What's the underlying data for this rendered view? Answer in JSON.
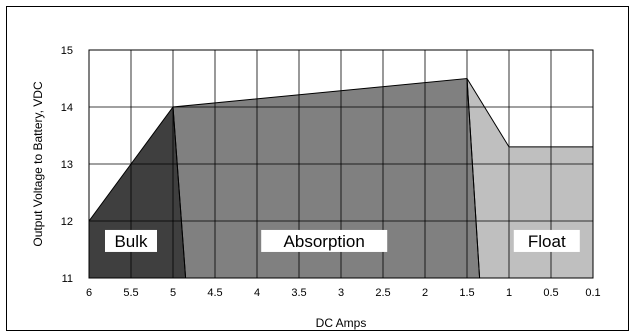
{
  "chart_data": {
    "type": "area",
    "xlabel": "DC Amps",
    "ylabel": "Output Voltage to Battery, VDC",
    "x_ticks": [
      "6",
      "5.5",
      "5",
      "4.5",
      "4",
      "3.5",
      "3",
      "2.5",
      "2",
      "1.5",
      "1",
      "0.5",
      "0.1"
    ],
    "y_ticks": [
      "11",
      "12",
      "13",
      "14",
      "15"
    ],
    "ylim": [
      11,
      15
    ],
    "grid": true,
    "x_direction": "decreasing",
    "phases": [
      {
        "name": "Bulk",
        "color": "#3f3f3f",
        "points": [
          [
            6,
            11
          ],
          [
            6,
            12
          ],
          [
            5,
            14
          ],
          [
            4.85,
            11
          ]
        ]
      },
      {
        "name": "Absorption",
        "color": "#808080",
        "points": [
          [
            4.85,
            11
          ],
          [
            5,
            14
          ],
          [
            1.5,
            14.5
          ],
          [
            1.35,
            11
          ]
        ]
      },
      {
        "name": "Float",
        "color": "#bfbfbf",
        "points": [
          [
            1.35,
            11
          ],
          [
            1.5,
            14.5
          ],
          [
            1,
            13.3
          ],
          [
            0.1,
            13.3
          ],
          [
            0.1,
            11
          ]
        ]
      }
    ]
  }
}
